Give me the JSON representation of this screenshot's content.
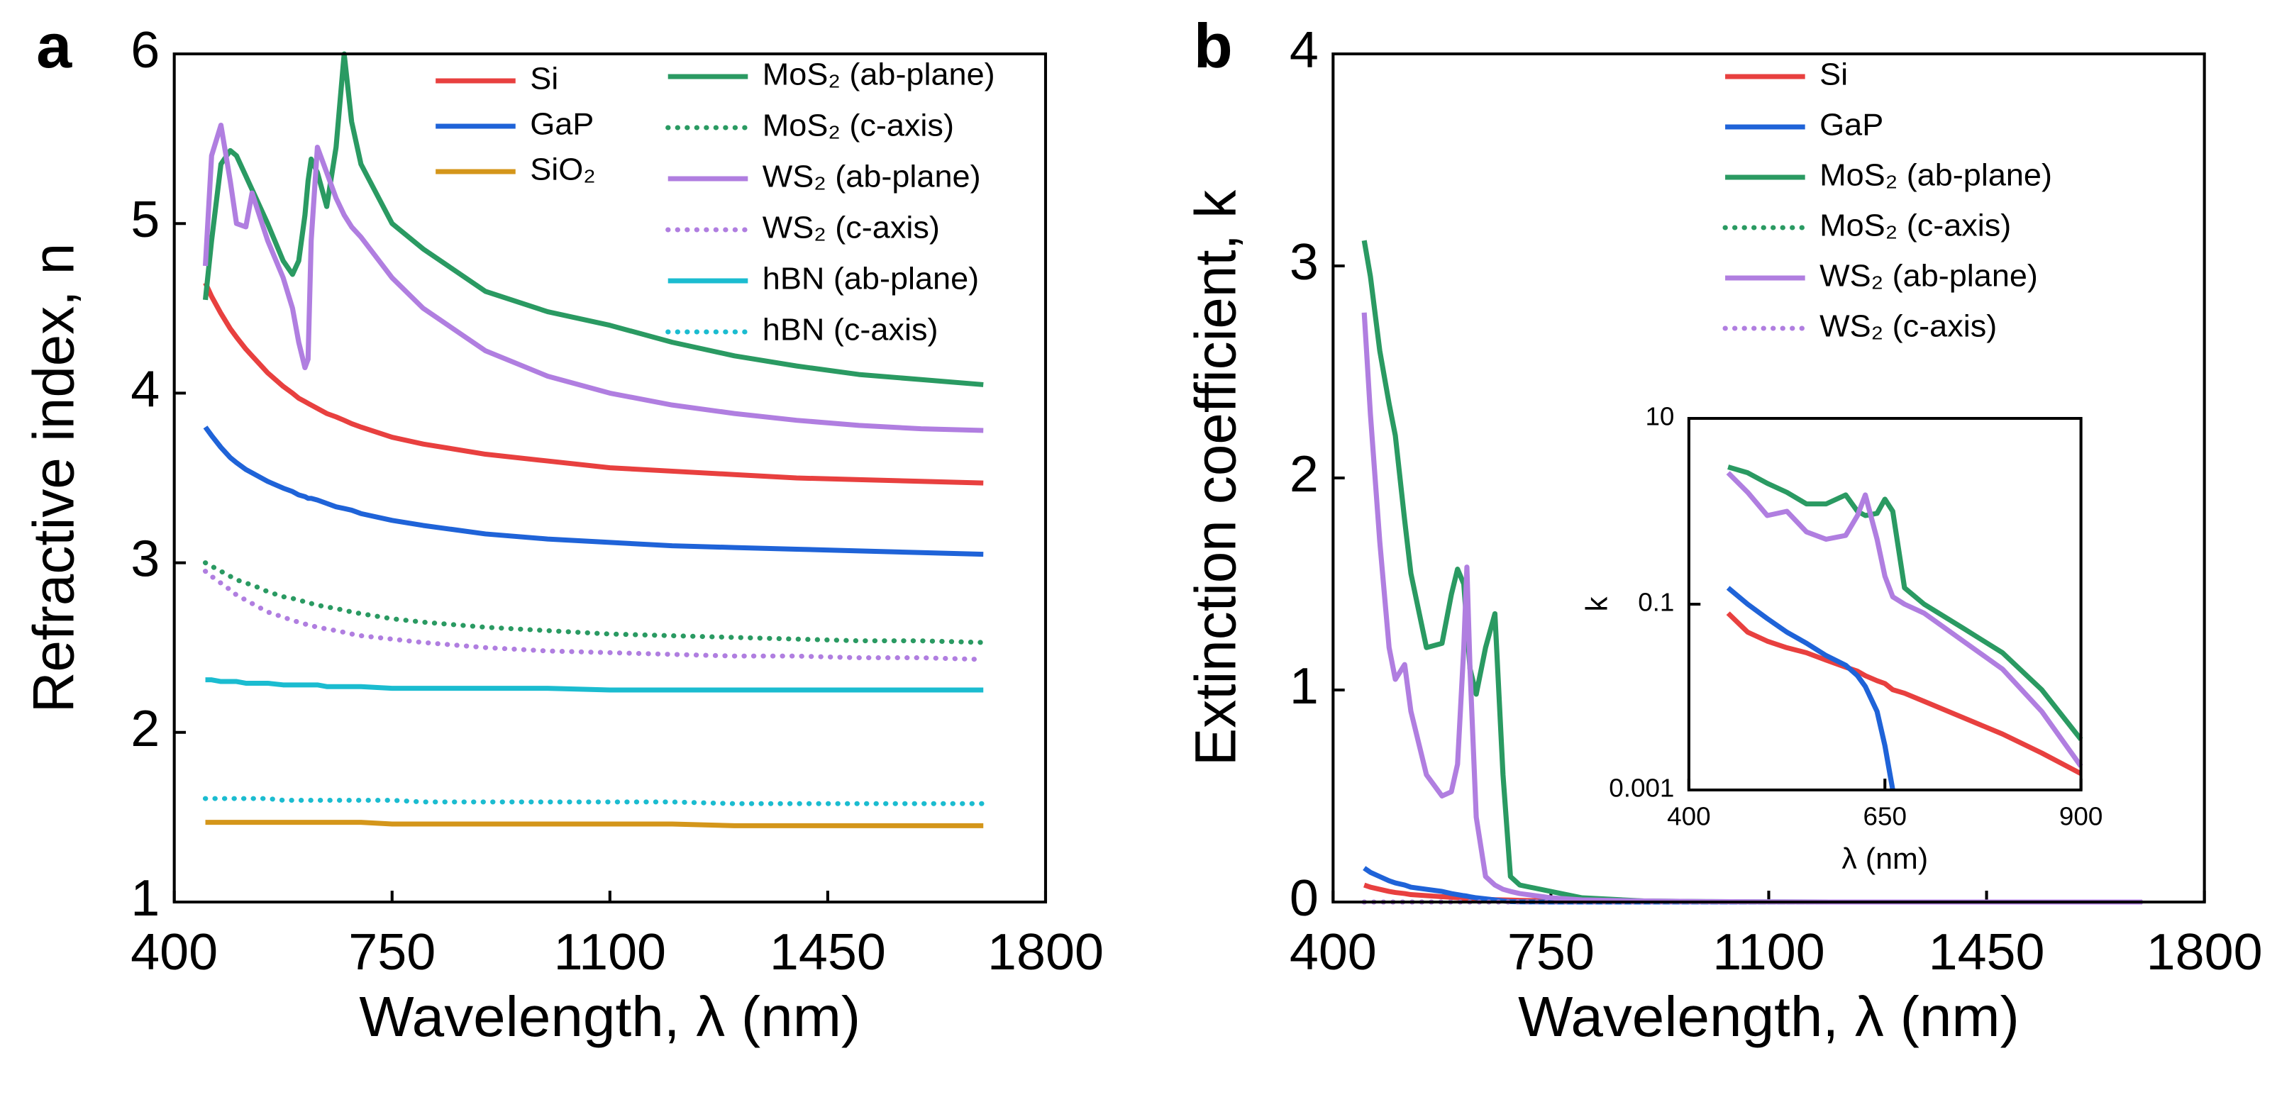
{
  "chart_data": [
    {
      "type": "line",
      "label": "a",
      "x_label": "Wavelength, λ (nm)",
      "y_label": "Refractive index, n",
      "xlim": [
        400,
        1800
      ],
      "ylim": [
        1,
        6
      ],
      "xticks": [
        400,
        750,
        1100,
        1450,
        1800
      ],
      "yticks": [
        1,
        2,
        3,
        4,
        5,
        6
      ],
      "x": [
        450,
        460,
        475,
        490,
        500,
        515,
        525,
        550,
        575,
        590,
        600,
        610,
        615,
        620,
        630,
        645,
        660,
        673,
        685,
        700,
        750,
        800,
        900,
        1000,
        1100,
        1200,
        1300,
        1400,
        1500,
        1600,
        1700
      ],
      "series": [
        {
          "name": "Si",
          "color": "#e8403f",
          "linestyle": "solid",
          "values": [
            4.65,
            4.57,
            4.47,
            4.38,
            4.33,
            4.26,
            4.22,
            4.12,
            4.04,
            4.0,
            3.97,
            3.95,
            3.94,
            3.93,
            3.91,
            3.88,
            3.86,
            3.84,
            3.82,
            3.8,
            3.74,
            3.7,
            3.64,
            3.6,
            3.56,
            3.54,
            3.52,
            3.5,
            3.49,
            3.48,
            3.47
          ]
        },
        {
          "name": "GaP",
          "color": "#1f63d8",
          "linestyle": "solid",
          "values": [
            3.8,
            3.75,
            3.68,
            3.62,
            3.59,
            3.55,
            3.53,
            3.48,
            3.44,
            3.42,
            3.4,
            3.39,
            3.38,
            3.38,
            3.37,
            3.35,
            3.33,
            3.32,
            3.31,
            3.29,
            3.25,
            3.22,
            3.17,
            3.14,
            3.12,
            3.1,
            3.09,
            3.08,
            3.07,
            3.06,
            3.05
          ]
        },
        {
          "name": "SiO₂",
          "color": "#d4961a",
          "linestyle": "solid",
          "values": [
            1.47,
            1.47,
            1.47,
            1.47,
            1.47,
            1.47,
            1.47,
            1.47,
            1.47,
            1.47,
            1.47,
            1.47,
            1.47,
            1.47,
            1.47,
            1.47,
            1.47,
            1.47,
            1.47,
            1.47,
            1.46,
            1.46,
            1.46,
            1.46,
            1.46,
            1.46,
            1.45,
            1.45,
            1.45,
            1.45,
            1.45
          ]
        },
        {
          "name": "MoS₂ (ab-plane)",
          "color": "#2a9a62",
          "linestyle": "solid",
          "values": [
            4.55,
            4.9,
            5.35,
            5.43,
            5.4,
            5.28,
            5.2,
            5.0,
            4.78,
            4.7,
            4.78,
            5.05,
            5.25,
            5.38,
            5.3,
            5.1,
            5.45,
            6.0,
            5.6,
            5.35,
            5.0,
            4.85,
            4.6,
            4.48,
            4.4,
            4.3,
            4.22,
            4.16,
            4.11,
            4.08,
            4.05
          ]
        },
        {
          "name": "MoS₂ (c-axis)",
          "color": "#2a9a62",
          "linestyle": "dotted",
          "values": [
            3.0,
            2.98,
            2.95,
            2.92,
            2.9,
            2.88,
            2.87,
            2.83,
            2.8,
            2.79,
            2.78,
            2.77,
            2.76,
            2.76,
            2.75,
            2.74,
            2.73,
            2.72,
            2.71,
            2.7,
            2.67,
            2.65,
            2.62,
            2.6,
            2.58,
            2.57,
            2.56,
            2.55,
            2.54,
            2.54,
            2.53
          ]
        },
        {
          "name": "WS₂ (ab-plane)",
          "color": "#b07ee0",
          "linestyle": "solid",
          "values": [
            4.75,
            5.4,
            5.58,
            5.25,
            5.0,
            4.98,
            5.18,
            4.9,
            4.68,
            4.5,
            4.3,
            4.15,
            4.2,
            4.9,
            5.45,
            5.3,
            5.15,
            5.05,
            4.98,
            4.92,
            4.68,
            4.5,
            4.25,
            4.1,
            4.0,
            3.93,
            3.88,
            3.84,
            3.81,
            3.79,
            3.78
          ]
        },
        {
          "name": "WS₂ (c-axis)",
          "color": "#b07ee0",
          "linestyle": "dotted",
          "values": [
            2.95,
            2.92,
            2.88,
            2.84,
            2.81,
            2.78,
            2.76,
            2.71,
            2.68,
            2.66,
            2.65,
            2.64,
            2.63,
            2.63,
            2.62,
            2.61,
            2.6,
            2.59,
            2.58,
            2.57,
            2.55,
            2.53,
            2.5,
            2.48,
            2.47,
            2.46,
            2.45,
            2.45,
            2.44,
            2.44,
            2.43
          ]
        },
        {
          "name": "hBN (ab-plane)",
          "color": "#1bbcd0",
          "linestyle": "solid",
          "values": [
            2.31,
            2.31,
            2.3,
            2.3,
            2.3,
            2.29,
            2.29,
            2.29,
            2.28,
            2.28,
            2.28,
            2.28,
            2.28,
            2.28,
            2.28,
            2.27,
            2.27,
            2.27,
            2.27,
            2.27,
            2.26,
            2.26,
            2.26,
            2.26,
            2.25,
            2.25,
            2.25,
            2.25,
            2.25,
            2.25,
            2.25
          ]
        },
        {
          "name": "hBN (c-axis)",
          "color": "#1bbcd0",
          "linestyle": "dotted",
          "values": [
            1.61,
            1.61,
            1.61,
            1.61,
            1.61,
            1.61,
            1.61,
            1.61,
            1.6,
            1.6,
            1.6,
            1.6,
            1.6,
            1.6,
            1.6,
            1.6,
            1.6,
            1.6,
            1.6,
            1.6,
            1.6,
            1.59,
            1.59,
            1.59,
            1.59,
            1.59,
            1.58,
            1.58,
            1.58,
            1.58,
            1.58
          ]
        }
      ]
    },
    {
      "type": "line",
      "label": "b",
      "x_label": "Wavelength, λ (nm)",
      "y_label": "Extinction coefficient, k",
      "xlim": [
        400,
        1800
      ],
      "ylim": [
        0,
        4
      ],
      "xticks": [
        400,
        750,
        1100,
        1450,
        1800
      ],
      "yticks": [
        0,
        1,
        2,
        3,
        4
      ],
      "x": [
        450,
        460,
        475,
        490,
        500,
        515,
        525,
        550,
        575,
        590,
        600,
        610,
        615,
        620,
        630,
        645,
        660,
        673,
        685,
        700,
        750,
        800,
        900,
        1000,
        1100,
        1200,
        1300,
        1400,
        1500,
        1600,
        1700
      ],
      "series": [
        {
          "name": "Si",
          "color": "#e8403f",
          "linestyle": "solid",
          "values": [
            0.08,
            0.07,
            0.06,
            0.05,
            0.045,
            0.04,
            0.035,
            0.03,
            0.025,
            0.022,
            0.02,
            0.018,
            0.017,
            0.016,
            0.015,
            0.013,
            0.011,
            0.01,
            0.009,
            0.008,
            0.005,
            0.003,
            0.001,
            0,
            0,
            0,
            0,
            0,
            0,
            0,
            0
          ]
        },
        {
          "name": "GaP",
          "color": "#1f63d8",
          "linestyle": "solid",
          "values": [
            0.16,
            0.14,
            0.12,
            0.1,
            0.09,
            0.08,
            0.07,
            0.06,
            0.05,
            0.04,
            0.035,
            0.03,
            0.028,
            0.025,
            0.02,
            0.015,
            0.01,
            0.005,
            0.002,
            0.001,
            0,
            0,
            0,
            0,
            0,
            0,
            0,
            0,
            0,
            0,
            0
          ]
        },
        {
          "name": "MoS₂ (ab-plane)",
          "color": "#2a9a62",
          "linestyle": "solid",
          "values": [
            3.12,
            2.95,
            2.6,
            2.35,
            2.2,
            1.8,
            1.55,
            1.2,
            1.22,
            1.45,
            1.57,
            1.5,
            1.3,
            1.1,
            0.98,
            1.2,
            1.36,
            0.6,
            0.12,
            0.08,
            0.05,
            0.02,
            0.005,
            0.002,
            0.001,
            0,
            0,
            0,
            0,
            0,
            0
          ]
        },
        {
          "name": "MoS₂ (c-axis)",
          "color": "#2a9a62",
          "linestyle": "dotted",
          "values": [
            0,
            0,
            0,
            0,
            0,
            0,
            0,
            0,
            0,
            0,
            0,
            0,
            0,
            0,
            0,
            0,
            0,
            0,
            0,
            0,
            0,
            0,
            0,
            0,
            0,
            0,
            0,
            0,
            0,
            0,
            0
          ]
        },
        {
          "name": "WS₂ (ab-plane)",
          "color": "#b07ee0",
          "linestyle": "solid",
          "values": [
            2.78,
            2.3,
            1.7,
            1.2,
            1.05,
            1.12,
            0.9,
            0.6,
            0.5,
            0.52,
            0.65,
            1.2,
            1.58,
            1.1,
            0.4,
            0.12,
            0.08,
            0.06,
            0.05,
            0.04,
            0.02,
            0.01,
            0.005,
            0.002,
            0.001,
            0,
            0,
            0,
            0,
            0,
            0
          ]
        },
        {
          "name": "WS₂ (c-axis)",
          "color": "#b07ee0",
          "linestyle": "dotted",
          "values": [
            0,
            0,
            0,
            0,
            0,
            0,
            0,
            0,
            0,
            0,
            0,
            0,
            0,
            0,
            0,
            0,
            0,
            0,
            0,
            0,
            0,
            0,
            0,
            0,
            0,
            0,
            0,
            0,
            0,
            0,
            0
          ]
        }
      ]
    },
    {
      "type": "line",
      "x_label": "λ (nm)",
      "y_label": "k",
      "log_y": true,
      "xlim": [
        400,
        900
      ],
      "ylim": [
        0.001,
        10
      ],
      "xticks": [
        400,
        650,
        900
      ],
      "yticks": [
        0.001,
        0.1,
        10
      ],
      "x": [
        450,
        475,
        500,
        525,
        550,
        575,
        600,
        615,
        625,
        640,
        650,
        660,
        675,
        700,
        750,
        800,
        850,
        900
      ],
      "series": [
        {
          "color": "#e8403f",
          "linestyle": "solid",
          "values": [
            0.08,
            0.05,
            0.04,
            0.034,
            0.03,
            0.025,
            0.021,
            0.019,
            0.017,
            0.015,
            0.014,
            0.012,
            0.011,
            0.009,
            0.006,
            0.004,
            0.0025,
            0.0015
          ]
        },
        {
          "color": "#1f63d8",
          "linestyle": "solid",
          "values": [
            0.15,
            0.1,
            0.07,
            0.05,
            0.038,
            0.028,
            0.022,
            0.017,
            0.013,
            0.007,
            0.003,
            0.001,
            null,
            null,
            null,
            null,
            null,
            null
          ]
        },
        {
          "color": "#2a9a62",
          "linestyle": "solid",
          "values": [
            3.0,
            2.6,
            2.0,
            1.6,
            1.2,
            1.2,
            1.5,
            1.0,
            0.9,
            0.95,
            1.35,
            1.0,
            0.15,
            0.1,
            0.055,
            0.03,
            0.012,
            0.0035
          ]
        },
        {
          "color": "#b07ee0",
          "linestyle": "solid",
          "values": [
            2.6,
            1.6,
            0.9,
            1.0,
            0.6,
            0.5,
            0.55,
            0.9,
            1.5,
            0.5,
            0.2,
            0.12,
            0.1,
            0.08,
            0.04,
            0.02,
            0.007,
            0.0018
          ]
        }
      ]
    }
  ]
}
